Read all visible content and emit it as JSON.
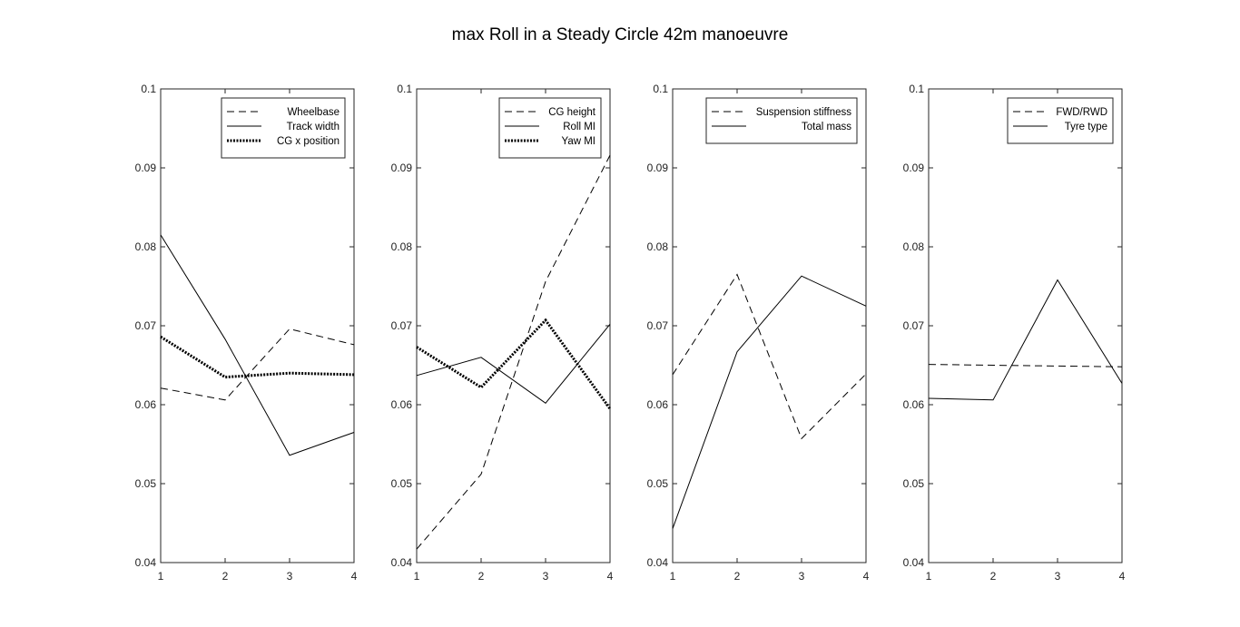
{
  "figure_title": "max Roll in a Steady Circle 42m manoeuvre",
  "colors": {
    "line": "#000000",
    "axes": "#262626",
    "background": "#ffffff"
  },
  "chart_data": [
    {
      "type": "line",
      "x": [
        1,
        2,
        3,
        4
      ],
      "xlim": [
        1,
        4
      ],
      "ylim": [
        0.04,
        0.1
      ],
      "x_ticks": [
        "1",
        "2",
        "3",
        "4"
      ],
      "y_ticks": [
        "0.04",
        "0.05",
        "0.06",
        "0.07",
        "0.08",
        "0.09",
        "0.1"
      ],
      "legend_placement": "top-right",
      "grid": false,
      "series": [
        {
          "name": "Wheelbase",
          "style": "dashed",
          "values": [
            0.0621,
            0.0606,
            0.0696,
            0.0676
          ]
        },
        {
          "name": "Track width",
          "style": "solid",
          "values": [
            0.0815,
            0.0683,
            0.0536,
            0.0565
          ]
        },
        {
          "name": "CG x position",
          "style": "dotted",
          "values": [
            0.0686,
            0.0635,
            0.064,
            0.0638
          ]
        }
      ]
    },
    {
      "type": "line",
      "x": [
        1,
        2,
        3,
        4
      ],
      "xlim": [
        1,
        4
      ],
      "ylim": [
        0.04,
        0.1
      ],
      "x_ticks": [
        "1",
        "2",
        "3",
        "4"
      ],
      "y_ticks": [
        "0.04",
        "0.05",
        "0.06",
        "0.07",
        "0.08",
        "0.09",
        "0.1"
      ],
      "legend_placement": "top-right",
      "grid": false,
      "series": [
        {
          "name": "CG height",
          "style": "dashed",
          "values": [
            0.0417,
            0.0512,
            0.0756,
            0.0916
          ]
        },
        {
          "name": "Roll MI",
          "style": "solid",
          "values": [
            0.0637,
            0.066,
            0.0602,
            0.0702
          ]
        },
        {
          "name": "Yaw MI",
          "style": "dotted",
          "values": [
            0.0673,
            0.0622,
            0.0707,
            0.0595
          ]
        }
      ]
    },
    {
      "type": "line",
      "x": [
        1,
        2,
        3,
        4
      ],
      "xlim": [
        1,
        4
      ],
      "ylim": [
        0.04,
        0.1
      ],
      "x_ticks": [
        "1",
        "2",
        "3",
        "4"
      ],
      "y_ticks": [
        "0.04",
        "0.05",
        "0.06",
        "0.07",
        "0.08",
        "0.09",
        "0.1"
      ],
      "legend_placement": "top-right",
      "grid": false,
      "series": [
        {
          "name": "Suspension stiffness",
          "style": "dashed",
          "values": [
            0.0638,
            0.0765,
            0.0557,
            0.0639
          ]
        },
        {
          "name": "Total mass",
          "style": "solid",
          "values": [
            0.0443,
            0.0667,
            0.0763,
            0.0725
          ]
        }
      ]
    },
    {
      "type": "line",
      "x": [
        1,
        2,
        3,
        4
      ],
      "xlim": [
        1,
        4
      ],
      "ylim": [
        0.04,
        0.1
      ],
      "x_ticks": [
        "1",
        "2",
        "3",
        "4"
      ],
      "y_ticks": [
        "0.04",
        "0.05",
        "0.06",
        "0.07",
        "0.08",
        "0.09",
        "0.1"
      ],
      "legend_placement": "top-right",
      "grid": false,
      "series": [
        {
          "name": "FWD/RWD",
          "style": "dashed",
          "values": [
            0.0651,
            0.065,
            0.0649,
            0.0648
          ]
        },
        {
          "name": "Tyre type",
          "style": "solid",
          "values": [
            0.0608,
            0.0606,
            0.0758,
            0.0627
          ]
        }
      ]
    }
  ]
}
